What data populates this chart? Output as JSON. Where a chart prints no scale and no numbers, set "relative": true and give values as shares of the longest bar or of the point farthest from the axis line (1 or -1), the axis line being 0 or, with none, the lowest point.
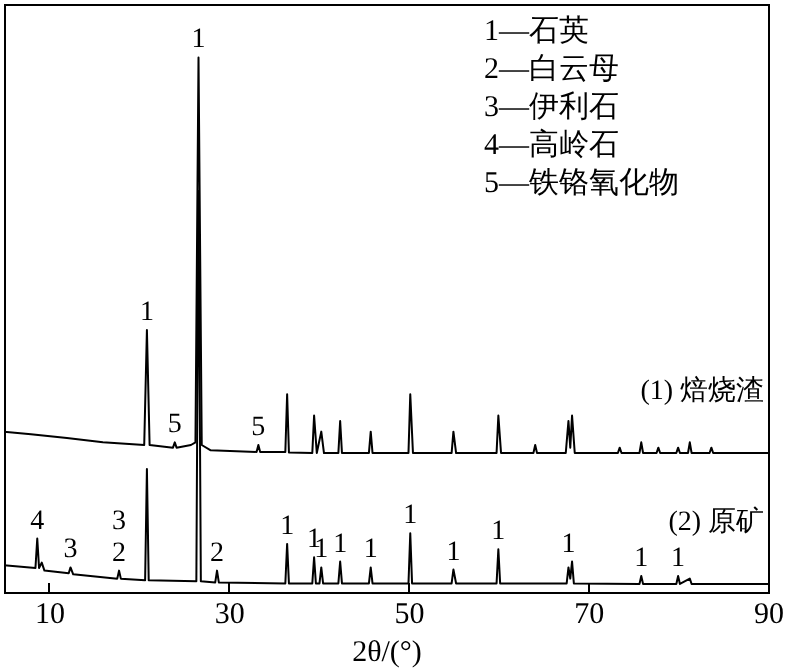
{
  "chart_data": {
    "type": "line",
    "relative": true,
    "xlabel": "2θ/(°)",
    "xlim": [
      5,
      90
    ],
    "xticks": [
      10,
      30,
      50,
      70,
      90
    ],
    "grid": false,
    "legend": false,
    "marker": "none",
    "line_style": "solid",
    "series": [
      {
        "name": "(1) 焙烧渣",
        "color": "#000000",
        "x": [
          5,
          8,
          12,
          16,
          20.6,
          20.9,
          21.2,
          23.8,
          24.0,
          24.2,
          25.8,
          26.3,
          26.64,
          27.0,
          28,
          33.1,
          33.3,
          33.5,
          36.3,
          36.5,
          36.7,
          39.3,
          39.5,
          39.8,
          40.3,
          40.6,
          42.2,
          42.4,
          42.6,
          45.6,
          45.8,
          46.0,
          50.0,
          50.2,
          50.5,
          54.8,
          55.0,
          55.3,
          59.8,
          60.0,
          60.3,
          63.9,
          64.1,
          64.3,
          67.5,
          67.8,
          68.0,
          68.2,
          68.5,
          73.3,
          73.5,
          73.7,
          75.7,
          75.9,
          76.1,
          77.6,
          77.8,
          78.0,
          79.8,
          80.0,
          80.2,
          81.1,
          81.3,
          81.5,
          83.5,
          83.7,
          83.9,
          90
        ],
        "values": [
          0.3,
          0.295,
          0.288,
          0.28,
          0.275,
          0.49,
          0.275,
          0.27,
          0.28,
          0.27,
          0.275,
          0.28,
          1.0,
          0.275,
          0.265,
          0.262,
          0.275,
          0.262,
          0.262,
          0.37,
          0.261,
          0.26,
          0.33,
          0.26,
          0.3,
          0.26,
          0.26,
          0.32,
          0.26,
          0.26,
          0.3,
          0.26,
          0.26,
          0.37,
          0.26,
          0.26,
          0.3,
          0.26,
          0.26,
          0.33,
          0.26,
          0.26,
          0.275,
          0.26,
          0.26,
          0.32,
          0.27,
          0.33,
          0.26,
          0.26,
          0.27,
          0.26,
          0.26,
          0.28,
          0.26,
          0.26,
          0.27,
          0.26,
          0.26,
          0.27,
          0.26,
          0.26,
          0.28,
          0.26,
          0.26,
          0.27,
          0.26,
          0.26
        ]
      },
      {
        "name": "(2) 原矿",
        "color": "#000000",
        "x": [
          5,
          8.5,
          8.7,
          8.9,
          9.2,
          9.5,
          12.2,
          12.4,
          12.7,
          17.6,
          17.8,
          18.0,
          20.7,
          20.9,
          21.1,
          26.4,
          26.64,
          26.9,
          28.5,
          28.7,
          28.9,
          36.3,
          36.5,
          36.7,
          39.3,
          39.5,
          39.7,
          40.1,
          40.3,
          40.5,
          42.2,
          42.4,
          42.6,
          45.6,
          45.8,
          46.0,
          50.0,
          50.2,
          50.4,
          54.8,
          55.0,
          55.3,
          59.8,
          60.0,
          60.2,
          67.6,
          67.8,
          68.0,
          68.2,
          68.4,
          75.7,
          75.9,
          76.1,
          79.8,
          80.0,
          80.2,
          81.3,
          81.5,
          90
        ],
        "values": [
          0.05,
          0.045,
          0.1,
          0.045,
          0.055,
          0.04,
          0.035,
          0.046,
          0.033,
          0.025,
          0.04,
          0.025,
          0.022,
          0.23,
          0.022,
          0.02,
          0.75,
          0.02,
          0.018,
          0.04,
          0.018,
          0.016,
          0.09,
          0.016,
          0.016,
          0.065,
          0.016,
          0.016,
          0.046,
          0.016,
          0.016,
          0.057,
          0.016,
          0.016,
          0.046,
          0.016,
          0.016,
          0.11,
          0.016,
          0.016,
          0.042,
          0.016,
          0.016,
          0.08,
          0.016,
          0.016,
          0.046,
          0.025,
          0.057,
          0.016,
          0.015,
          0.03,
          0.015,
          0.015,
          0.03,
          0.015,
          0.025,
          0.015,
          0.015
        ]
      }
    ],
    "annotations": [
      "1—石英",
      "2—白云母",
      "3—伊利石",
      "4—高岭石",
      "5—铁铬氧化物",
      {
        "text": "1",
        "x": 20.9,
        "y": 0.49
      },
      {
        "text": "1",
        "x": 26.64,
        "y": 1.0
      },
      {
        "text": "5",
        "x": 24.0,
        "y": 0.28
      },
      {
        "text": "5",
        "x": 33.3,
        "y": 0.275
      },
      {
        "text": "4",
        "x": 8.7,
        "y": 0.1
      },
      {
        "text": "3",
        "x": 12.4,
        "y": 0.046
      },
      {
        "text": "2",
        "x": 17.8,
        "y": 0.04
      },
      {
        "text": "3",
        "x": 17.8,
        "y": 0.04
      },
      {
        "text": "2",
        "x": 28.7,
        "y": 0.04
      },
      {
        "text": "1",
        "x": 36.5,
        "y": 0.09
      },
      {
        "text": "1",
        "x": 39.5,
        "y": 0.065
      },
      {
        "text": "1",
        "x": 40.3,
        "y": 0.046
      },
      {
        "text": "1",
        "x": 42.4,
        "y": 0.057
      },
      {
        "text": "1",
        "x": 45.8,
        "y": 0.046
      },
      {
        "text": "1",
        "x": 50.2,
        "y": 0.11
      },
      {
        "text": "1",
        "x": 55.0,
        "y": 0.042
      },
      {
        "text": "1",
        "x": 60.0,
        "y": 0.08
      },
      {
        "text": "1",
        "x": 67.8,
        "y": 0.057
      },
      {
        "text": "1",
        "x": 75.9,
        "y": 0.03
      },
      {
        "text": "1",
        "x": 80.0,
        "y": 0.03
      }
    ]
  }
}
